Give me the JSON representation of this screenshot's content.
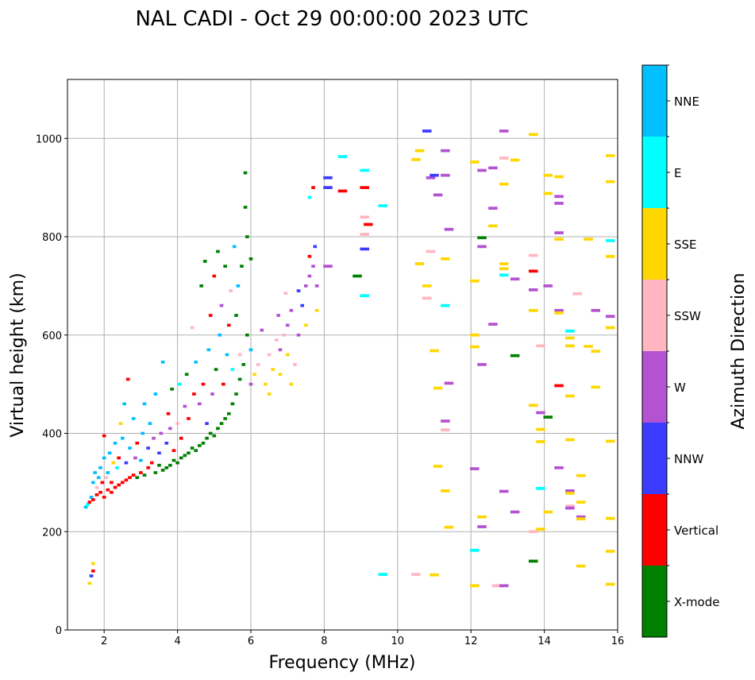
{
  "chart_data": {
    "type": "scatter",
    "title": "NAL CADI - Oct 29 00:00:00 2023 UTC",
    "xlabel": "Frequency (MHz)",
    "ylabel": "Virtual height (km)",
    "xlim": [
      1,
      16
    ],
    "ylim": [
      0,
      1120
    ],
    "xticks": [
      2,
      4,
      6,
      8,
      10,
      12,
      14,
      16
    ],
    "yticks": [
      0,
      200,
      400,
      600,
      800,
      1000
    ],
    "grid": true,
    "colorbar": {
      "label": "Azimuth Direction",
      "placement": "right",
      "categories": [
        {
          "name": "X-mode",
          "color": "#008000"
        },
        {
          "name": "Vertical",
          "color": "#ff0000"
        },
        {
          "name": "NNW",
          "color": "#3c3cff"
        },
        {
          "name": "W",
          "color": "#b452d2"
        },
        {
          "name": "SSW",
          "color": "#ffb6c1"
        },
        {
          "name": "SSE",
          "color": "#ffd700"
        },
        {
          "name": "E",
          "color": "#00ffff"
        },
        {
          "name": "NNE",
          "color": "#00bfff"
        }
      ]
    },
    "point_format": [
      "frequency_MHz",
      "virtual_height_km",
      "category_index"
    ],
    "points": [
      [
        1.5,
        250,
        7
      ],
      [
        1.55,
        255,
        6
      ],
      [
        1.6,
        260,
        1
      ],
      [
        1.65,
        270,
        7
      ],
      [
        1.7,
        265,
        1
      ],
      [
        1.7,
        300,
        7
      ],
      [
        1.75,
        320,
        7
      ],
      [
        1.8,
        275,
        1
      ],
      [
        1.8,
        290,
        4
      ],
      [
        1.85,
        310,
        7
      ],
      [
        1.9,
        280,
        1
      ],
      [
        1.9,
        330,
        7
      ],
      [
        1.95,
        300,
        1
      ],
      [
        2.0,
        270,
        1
      ],
      [
        2.0,
        350,
        7
      ],
      [
        2.0,
        395,
        1
      ],
      [
        2.05,
        310,
        4
      ],
      [
        2.1,
        285,
        1
      ],
      [
        2.1,
        320,
        7
      ],
      [
        2.15,
        360,
        7
      ],
      [
        2.2,
        280,
        1
      ],
      [
        2.2,
        300,
        1
      ],
      [
        2.25,
        340,
        5
      ],
      [
        2.3,
        290,
        1
      ],
      [
        2.3,
        380,
        7
      ],
      [
        2.35,
        330,
        6
      ],
      [
        2.4,
        295,
        1
      ],
      [
        2.4,
        350,
        1
      ],
      [
        2.45,
        420,
        5
      ],
      [
        2.5,
        300,
        1
      ],
      [
        2.5,
        390,
        7
      ],
      [
        2.55,
        460,
        7
      ],
      [
        2.6,
        305,
        1
      ],
      [
        2.6,
        340,
        2
      ],
      [
        2.65,
        510,
        1
      ],
      [
        2.7,
        310,
        1
      ],
      [
        2.7,
        370,
        7
      ],
      [
        2.8,
        315,
        1
      ],
      [
        2.8,
        430,
        7
      ],
      [
        2.85,
        350,
        3
      ],
      [
        2.9,
        310,
        0
      ],
      [
        2.9,
        380,
        1
      ],
      [
        3.0,
        320,
        1
      ],
      [
        3.0,
        345,
        7
      ],
      [
        3.05,
        400,
        7
      ],
      [
        3.1,
        315,
        0
      ],
      [
        3.1,
        460,
        7
      ],
      [
        3.2,
        330,
        1
      ],
      [
        3.2,
        370,
        2
      ],
      [
        3.25,
        420,
        7
      ],
      [
        3.3,
        340,
        1
      ],
      [
        3.35,
        390,
        3
      ],
      [
        3.4,
        320,
        0
      ],
      [
        3.4,
        480,
        7
      ],
      [
        3.5,
        335,
        0
      ],
      [
        3.5,
        360,
        2
      ],
      [
        3.55,
        400,
        3
      ],
      [
        3.6,
        325,
        0
      ],
      [
        3.6,
        545,
        7
      ],
      [
        3.7,
        330,
        0
      ],
      [
        3.7,
        380,
        2
      ],
      [
        3.75,
        440,
        1
      ],
      [
        3.8,
        335,
        0
      ],
      [
        3.8,
        410,
        3
      ],
      [
        3.85,
        490,
        0
      ],
      [
        3.9,
        345,
        0
      ],
      [
        3.9,
        365,
        1
      ],
      [
        4.0,
        340,
        0
      ],
      [
        4.0,
        420,
        4
      ],
      [
        4.05,
        500,
        6
      ],
      [
        4.1,
        350,
        0
      ],
      [
        4.1,
        390,
        1
      ],
      [
        4.2,
        355,
        0
      ],
      [
        4.2,
        455,
        3
      ],
      [
        4.25,
        520,
        0
      ],
      [
        4.3,
        360,
        0
      ],
      [
        4.3,
        430,
        1
      ],
      [
        4.4,
        370,
        0
      ],
      [
        4.4,
        615,
        4
      ],
      [
        4.45,
        480,
        1
      ],
      [
        4.5,
        365,
        0
      ],
      [
        4.5,
        545,
        7
      ],
      [
        4.6,
        375,
        0
      ],
      [
        4.6,
        460,
        3
      ],
      [
        4.65,
        700,
        0
      ],
      [
        4.7,
        380,
        0
      ],
      [
        4.7,
        500,
        1
      ],
      [
        4.75,
        750,
        0
      ],
      [
        4.8,
        390,
        0
      ],
      [
        4.8,
        420,
        2
      ],
      [
        4.85,
        570,
        7
      ],
      [
        4.9,
        400,
        0
      ],
      [
        4.9,
        640,
        1
      ],
      [
        4.95,
        480,
        3
      ],
      [
        5.0,
        395,
        0
      ],
      [
        5.0,
        720,
        1
      ],
      [
        5.05,
        530,
        0
      ],
      [
        5.1,
        410,
        0
      ],
      [
        5.1,
        770,
        0
      ],
      [
        5.15,
        600,
        7
      ],
      [
        5.2,
        420,
        0
      ],
      [
        5.2,
        660,
        3
      ],
      [
        5.25,
        500,
        1
      ],
      [
        5.3,
        430,
        0
      ],
      [
        5.3,
        740,
        0
      ],
      [
        5.35,
        560,
        7
      ],
      [
        5.4,
        440,
        0
      ],
      [
        5.4,
        620,
        1
      ],
      [
        5.45,
        690,
        4
      ],
      [
        5.5,
        460,
        0
      ],
      [
        5.5,
        530,
        6
      ],
      [
        5.55,
        780,
        7
      ],
      [
        5.6,
        480,
        0
      ],
      [
        5.6,
        640,
        0
      ],
      [
        5.65,
        700,
        7
      ],
      [
        5.7,
        510,
        0
      ],
      [
        5.7,
        560,
        4
      ],
      [
        5.75,
        740,
        0
      ],
      [
        5.8,
        540,
        0
      ],
      [
        5.85,
        860,
        0
      ],
      [
        5.85,
        930,
        0
      ],
      [
        5.9,
        600,
        0
      ],
      [
        5.9,
        800,
        0
      ],
      [
        6.0,
        570,
        7
      ],
      [
        6.0,
        755,
        0
      ],
      [
        6.0,
        500,
        3
      ],
      [
        6.1,
        520,
        5
      ],
      [
        6.2,
        540,
        4
      ],
      [
        6.3,
        610,
        3
      ],
      [
        6.4,
        500,
        5
      ],
      [
        6.5,
        480,
        5
      ],
      [
        6.5,
        560,
        4
      ],
      [
        6.6,
        530,
        5
      ],
      [
        6.7,
        590,
        4
      ],
      [
        6.75,
        640,
        3
      ],
      [
        6.8,
        520,
        5
      ],
      [
        6.8,
        570,
        3
      ],
      [
        6.9,
        600,
        4
      ],
      [
        6.95,
        685,
        4
      ],
      [
        7.0,
        560,
        5
      ],
      [
        7.0,
        620,
        3
      ],
      [
        7.1,
        500,
        5
      ],
      [
        7.1,
        650,
        3
      ],
      [
        7.2,
        540,
        4
      ],
      [
        7.3,
        600,
        3
      ],
      [
        7.3,
        690,
        2
      ],
      [
        7.4,
        660,
        2
      ],
      [
        7.5,
        700,
        3
      ],
      [
        7.5,
        620,
        5
      ],
      [
        7.6,
        720,
        3
      ],
      [
        7.6,
        760,
        1
      ],
      [
        7.7,
        740,
        3
      ],
      [
        7.75,
        780,
        2
      ],
      [
        7.8,
        650,
        5
      ],
      [
        7.8,
        700,
        3
      ],
      [
        7.7,
        900,
        1
      ],
      [
        7.6,
        880,
        6
      ],
      [
        8.1,
        920,
        2
      ],
      [
        8.1,
        900,
        2
      ],
      [
        8.1,
        740,
        3
      ],
      [
        8.5,
        893,
        1
      ],
      [
        8.5,
        963,
        6
      ],
      [
        8.9,
        720,
        0
      ],
      [
        9.1,
        900,
        1
      ],
      [
        9.1,
        935,
        6
      ],
      [
        9.1,
        840,
        4
      ],
      [
        9.1,
        805,
        4
      ],
      [
        9.1,
        775,
        2
      ],
      [
        9.1,
        680,
        6
      ],
      [
        9.2,
        825,
        1
      ],
      [
        9.6,
        863,
        6
      ],
      [
        9.6,
        113,
        6
      ],
      [
        10.5,
        957,
        5
      ],
      [
        10.6,
        975,
        5
      ],
      [
        10.8,
        1015,
        2
      ],
      [
        10.9,
        920,
        3
      ],
      [
        11.0,
        925,
        2
      ],
      [
        10.6,
        745,
        5
      ],
      [
        10.8,
        700,
        5
      ],
      [
        10.8,
        675,
        4
      ],
      [
        10.9,
        770,
        4
      ],
      [
        11.0,
        568,
        5
      ],
      [
        11.0,
        112,
        5
      ],
      [
        11.1,
        492,
        5
      ],
      [
        11.1,
        885,
        3
      ],
      [
        11.3,
        975,
        3
      ],
      [
        11.3,
        925,
        3
      ],
      [
        11.3,
        755,
        5
      ],
      [
        11.3,
        660,
        6
      ],
      [
        11.3,
        425,
        3
      ],
      [
        11.3,
        407,
        4
      ],
      [
        11.3,
        283,
        5
      ],
      [
        11.4,
        815,
        3
      ],
      [
        11.4,
        502,
        3
      ],
      [
        11.4,
        209,
        5
      ],
      [
        11.1,
        333,
        5
      ],
      [
        10.5,
        113,
        4
      ],
      [
        12.1,
        952,
        5
      ],
      [
        12.1,
        710,
        5
      ],
      [
        12.1,
        600,
        5
      ],
      [
        12.1,
        576,
        5
      ],
      [
        12.1,
        328,
        3
      ],
      [
        12.1,
        162,
        6
      ],
      [
        12.1,
        90,
        5
      ],
      [
        12.3,
        935,
        3
      ],
      [
        12.3,
        798,
        0
      ],
      [
        12.3,
        780,
        3
      ],
      [
        12.3,
        540,
        3
      ],
      [
        12.3,
        230,
        5
      ],
      [
        12.3,
        210,
        3
      ],
      [
        12.6,
        940,
        3
      ],
      [
        12.6,
        858,
        3
      ],
      [
        12.6,
        822,
        5
      ],
      [
        12.6,
        622,
        3
      ],
      [
        12.7,
        90,
        4
      ],
      [
        12.9,
        1015,
        3
      ],
      [
        12.9,
        960,
        4
      ],
      [
        12.9,
        907,
        5
      ],
      [
        12.9,
        745,
        5
      ],
      [
        12.9,
        735,
        5
      ],
      [
        12.9,
        722,
        6
      ],
      [
        12.9,
        282,
        3
      ],
      [
        12.9,
        90,
        3
      ],
      [
        13.2,
        956,
        5
      ],
      [
        13.2,
        714,
        3
      ],
      [
        13.2,
        558,
        0
      ],
      [
        13.2,
        240,
        3
      ],
      [
        13.7,
        1008,
        5
      ],
      [
        13.7,
        762,
        4
      ],
      [
        13.7,
        730,
        1
      ],
      [
        13.7,
        692,
        3
      ],
      [
        13.7,
        650,
        5
      ],
      [
        13.7,
        457,
        5
      ],
      [
        13.7,
        200,
        4
      ],
      [
        13.7,
        140,
        0
      ],
      [
        13.9,
        578,
        4
      ],
      [
        13.9,
        442,
        3
      ],
      [
        13.9,
        408,
        5
      ],
      [
        13.9,
        383,
        5
      ],
      [
        13.9,
        288,
        6
      ],
      [
        13.9,
        205,
        5
      ],
      [
        14.1,
        925,
        5
      ],
      [
        14.1,
        888,
        5
      ],
      [
        14.1,
        700,
        3
      ],
      [
        14.1,
        433,
        0
      ],
      [
        14.1,
        240,
        5
      ],
      [
        14.4,
        922,
        5
      ],
      [
        14.4,
        882,
        3
      ],
      [
        14.4,
        868,
        3
      ],
      [
        14.4,
        808,
        3
      ],
      [
        14.4,
        795,
        5
      ],
      [
        14.4,
        650,
        3
      ],
      [
        14.4,
        645,
        5
      ],
      [
        14.4,
        497,
        1
      ],
      [
        14.4,
        330,
        3
      ],
      [
        14.7,
        608,
        6
      ],
      [
        14.7,
        594,
        5
      ],
      [
        14.7,
        578,
        5
      ],
      [
        14.7,
        476,
        5
      ],
      [
        14.7,
        387,
        5
      ],
      [
        14.7,
        283,
        3
      ],
      [
        14.7,
        278,
        5
      ],
      [
        14.7,
        252,
        4
      ],
      [
        14.7,
        248,
        3
      ],
      [
        14.9,
        684,
        4
      ],
      [
        15.0,
        260,
        5
      ],
      [
        15.0,
        230,
        3
      ],
      [
        15.0,
        226,
        5
      ],
      [
        15.0,
        314,
        5
      ],
      [
        15.0,
        130,
        5
      ],
      [
        15.2,
        577,
        5
      ],
      [
        15.2,
        795,
        5
      ],
      [
        15.4,
        650,
        3
      ],
      [
        15.4,
        567,
        5
      ],
      [
        15.4,
        494,
        5
      ],
      [
        15.8,
        965,
        5
      ],
      [
        15.8,
        912,
        5
      ],
      [
        15.8,
        792,
        6
      ],
      [
        15.8,
        760,
        5
      ],
      [
        15.8,
        638,
        3
      ],
      [
        15.8,
        615,
        5
      ],
      [
        15.8,
        384,
        5
      ],
      [
        15.8,
        227,
        5
      ],
      [
        15.8,
        160,
        5
      ],
      [
        15.8,
        93,
        5
      ],
      [
        1.6,
        95,
        5
      ],
      [
        1.65,
        110,
        2
      ],
      [
        1.7,
        135,
        5
      ],
      [
        1.7,
        120,
        1
      ]
    ]
  }
}
